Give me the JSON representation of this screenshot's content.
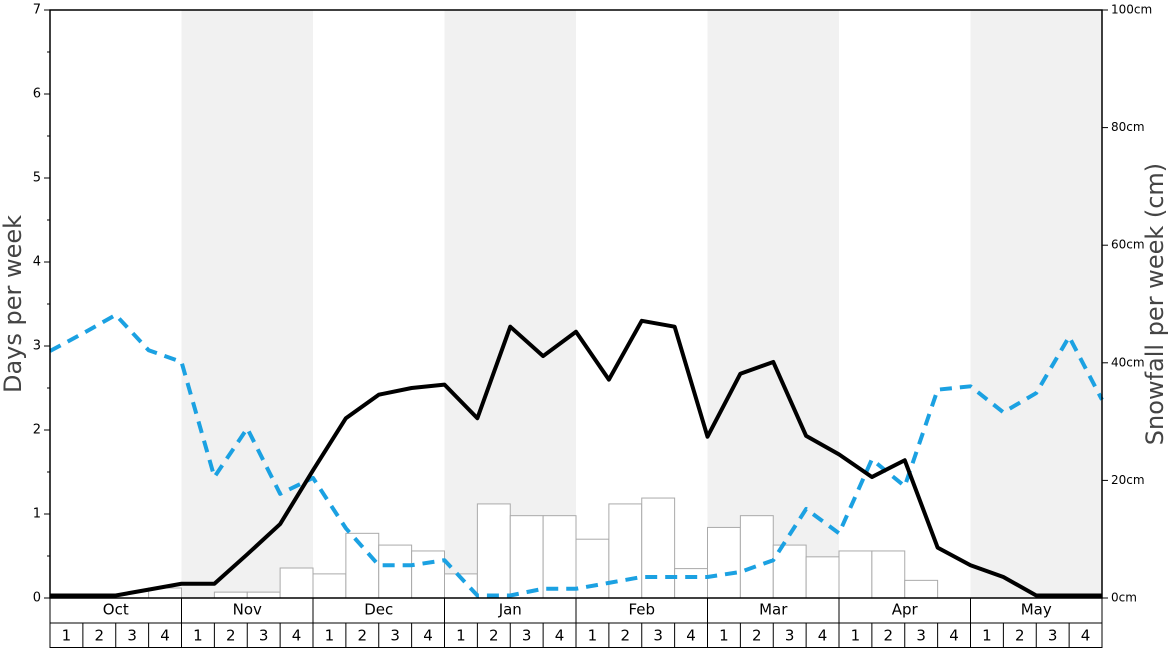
{
  "chart_data": {
    "type": "line",
    "ylabel": "Days per week",
    "y2label": "Snowfall per week (cm)",
    "months": [
      "Oct",
      "Nov",
      "Dec",
      "Jan",
      "Feb",
      "Mar",
      "Apr",
      "May"
    ],
    "week_labels": [
      "1",
      "2",
      "3",
      "4"
    ],
    "ylim": [
      0,
      7
    ],
    "yticks": [
      0,
      1,
      2,
      3,
      4,
      5,
      6,
      7
    ],
    "y2lim": [
      0,
      100
    ],
    "y2ticks": [
      {
        "value": 0,
        "label": "0cm"
      },
      {
        "value": 20,
        "label": "20cm"
      },
      {
        "value": 40,
        "label": "40cm"
      },
      {
        "value": 60,
        "label": "60cm"
      },
      {
        "value": 80,
        "label": "80cm"
      },
      {
        "value": 100,
        "label": "100cm"
      }
    ],
    "series": [
      {
        "type": "bar",
        "axis": "y2",
        "color": "#ffffff",
        "edge": "#aaaaaa",
        "values": [
          0,
          0,
          0,
          1.7,
          0,
          1,
          1,
          5.1,
          4.1,
          11,
          9,
          8,
          4.1,
          16,
          14,
          14,
          10,
          16,
          17,
          5,
          12,
          14,
          9,
          7,
          8,
          8,
          3,
          0,
          0,
          0,
          0,
          0
        ]
      },
      {
        "type": "line",
        "color": "#1ba1e2",
        "dashed": true,
        "values": [
          2.94,
          3.15,
          3.37,
          2.95,
          2.81,
          1.44,
          2.02,
          1.24,
          1.43,
          0.83,
          0.39,
          0.39,
          0.45,
          0.03,
          0.03,
          0.11,
          0.11,
          0.18,
          0.25,
          0.25,
          0.25,
          0.31,
          0.45,
          1.06,
          0.77,
          1.65,
          1.33,
          2.48,
          2.52,
          2.21,
          2.44,
          3.11,
          2.36
        ]
      },
      {
        "type": "line",
        "color": "#000000",
        "dashed": false,
        "values": [
          0.03,
          0.03,
          0.03,
          0.1,
          0.17,
          0.17,
          0.52,
          0.88,
          1.52,
          2.14,
          2.42,
          2.5,
          2.54,
          2.14,
          3.23,
          2.88,
          3.17,
          2.6,
          3.3,
          3.23,
          1.92,
          2.67,
          2.81,
          1.93,
          1.71,
          1.44,
          1.64,
          0.6,
          0.39,
          0.25,
          0.03,
          0.03,
          0.03
        ]
      }
    ]
  }
}
